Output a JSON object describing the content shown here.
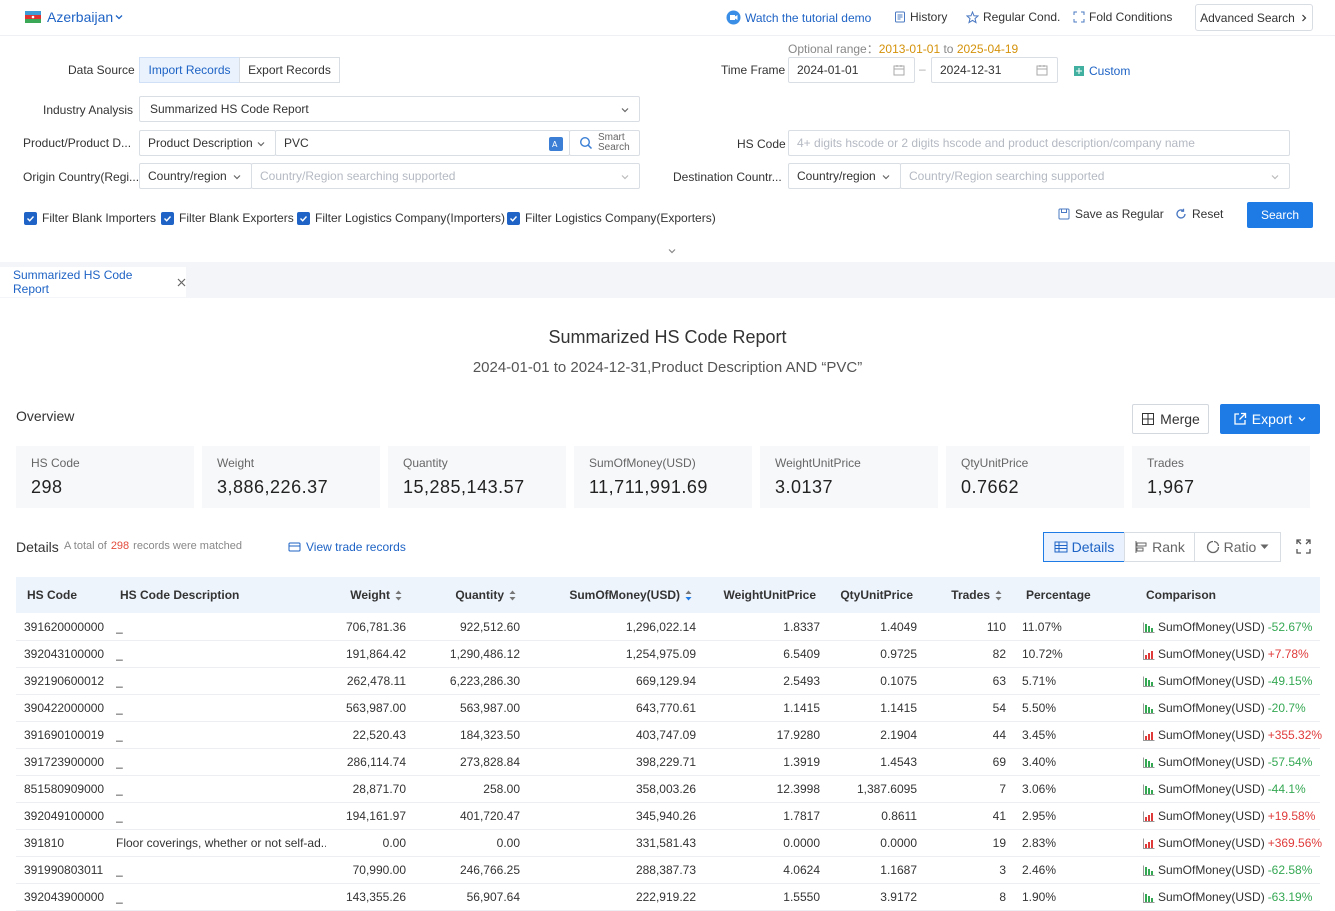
{
  "topbar": {
    "country": "Azerbaijan",
    "links": {
      "tutorial": "Watch the tutorial demo",
      "history": "History",
      "regular": "Regular Cond.",
      "fold": "Fold Conditions",
      "advanced": "Advanced Search"
    }
  },
  "form": {
    "data_source_label": "Data Source",
    "import_label": "Import Records",
    "export_label": "Export Records",
    "optional_range_label": "Optional range：",
    "optional_from": "2013-01-01",
    "optional_to_word": "to",
    "optional_to": "2025-04-19",
    "time_frame_label": "Time Frame",
    "date_from": "2024-01-01",
    "date_sep": "–",
    "date_to": "2024-12-31",
    "custom_label": "Custom",
    "industry_label": "Industry Analysis",
    "industry_value": "Summarized HS Code Report",
    "product_label": "Product/Product D...",
    "product_type": "Product Description",
    "product_value": "PVC",
    "smart_search_1": "Smart",
    "smart_search_2": "Search",
    "hs_label": "HS Code",
    "hs_placeholder": "4+ digits hscode or 2 digits hscode and product description/company name",
    "origin_label": "Origin Country(Regi...",
    "origin_type": "Country/region",
    "origin_placeholder": "Country/Region searching supported",
    "dest_label": "Destination Countr...",
    "dest_type": "Country/region",
    "dest_placeholder": "Country/Region searching supported",
    "filters": [
      "Filter Blank Importers",
      "Filter Blank Exporters",
      "Filter Logistics Company(Importers)",
      "Filter Logistics Company(Exporters)"
    ],
    "save_regular": "Save as Regular",
    "reset": "Reset",
    "search": "Search"
  },
  "tab": {
    "label": "Summarized HS Code Report"
  },
  "report": {
    "title": "Summarized HS Code Report",
    "subtitle": "2024-01-01 to 2024-12-31,Product Description AND “PVC”",
    "overview_label": "Overview",
    "merge": "Merge",
    "export": "Export",
    "cards": [
      {
        "title": "HS Code",
        "value": "298"
      },
      {
        "title": "Weight",
        "value": "3,886,226.37"
      },
      {
        "title": "Quantity",
        "value": "15,285,143.57"
      },
      {
        "title": "SumOfMoney(USD)",
        "value": "11,711,991.69"
      },
      {
        "title": "WeightUnitPrice",
        "value": "3.0137"
      },
      {
        "title": "QtyUnitPrice",
        "value": "0.7662"
      },
      {
        "title": "Trades",
        "value": "1,967"
      }
    ],
    "details_label": "Details",
    "total_prefix": "A total of",
    "total_count": "298",
    "total_suffix": "records were matched",
    "view_trade": "View trade records",
    "view_details": "Details",
    "view_rank": "Rank",
    "view_ratio": "Ratio"
  },
  "table": {
    "headers": [
      "HS Code",
      "HS Code Description",
      "Weight",
      "Quantity",
      "SumOfMoney(USD)",
      "WeightUnitPrice",
      "QtyUnitPrice",
      "Trades",
      "Percentage",
      "Comparison"
    ],
    "rows": [
      {
        "hs": "391620000000",
        "desc": "_",
        "weight": "706,781.36",
        "qty": "922,512.60",
        "money": "1,296,022.14",
        "wup": "1.8337",
        "qup": "1.4049",
        "trades": "110",
        "pct": "11.07%",
        "cmp_label": "SumOfMoney(USD)",
        "cmp_val": "-52.67%",
        "dir": "down"
      },
      {
        "hs": "392043100000",
        "desc": "_",
        "weight": "191,864.42",
        "qty": "1,290,486.12",
        "money": "1,254,975.09",
        "wup": "6.5409",
        "qup": "0.9725",
        "trades": "82",
        "pct": "10.72%",
        "cmp_label": "SumOfMoney(USD)",
        "cmp_val": "+7.78%",
        "dir": "up"
      },
      {
        "hs": "392190600012",
        "desc": "_",
        "weight": "262,478.11",
        "qty": "6,223,286.30",
        "money": "669,129.94",
        "wup": "2.5493",
        "qup": "0.1075",
        "trades": "63",
        "pct": "5.71%",
        "cmp_label": "SumOfMoney(USD)",
        "cmp_val": "-49.15%",
        "dir": "down"
      },
      {
        "hs": "390422000000",
        "desc": "_",
        "weight": "563,987.00",
        "qty": "563,987.00",
        "money": "643,770.61",
        "wup": "1.1415",
        "qup": "1.1415",
        "trades": "54",
        "pct": "5.50%",
        "cmp_label": "SumOfMoney(USD)",
        "cmp_val": "-20.7%",
        "dir": "down"
      },
      {
        "hs": "391690100019",
        "desc": "_",
        "weight": "22,520.43",
        "qty": "184,323.50",
        "money": "403,747.09",
        "wup": "17.9280",
        "qup": "2.1904",
        "trades": "44",
        "pct": "3.45%",
        "cmp_label": "SumOfMoney(USD)",
        "cmp_val": "+355.32%",
        "dir": "up"
      },
      {
        "hs": "391723900000",
        "desc": "_",
        "weight": "286,114.74",
        "qty": "273,828.84",
        "money": "398,229.71",
        "wup": "1.3919",
        "qup": "1.4543",
        "trades": "69",
        "pct": "3.40%",
        "cmp_label": "SumOfMoney(USD)",
        "cmp_val": "-57.54%",
        "dir": "down"
      },
      {
        "hs": "851580909000",
        "desc": "_",
        "weight": "28,871.70",
        "qty": "258.00",
        "money": "358,003.26",
        "wup": "12.3998",
        "qup": "1,387.6095",
        "trades": "7",
        "pct": "3.06%",
        "cmp_label": "SumOfMoney(USD)",
        "cmp_val": "-44.1%",
        "dir": "down"
      },
      {
        "hs": "392049100000",
        "desc": "_",
        "weight": "194,161.97",
        "qty": "401,720.47",
        "money": "345,940.26",
        "wup": "1.7817",
        "qup": "0.8611",
        "trades": "41",
        "pct": "2.95%",
        "cmp_label": "SumOfMoney(USD)",
        "cmp_val": "+19.58%",
        "dir": "up"
      },
      {
        "hs": "391810",
        "desc": "Floor coverings, whether or not self-ad...",
        "weight": "0.00",
        "qty": "0.00",
        "money": "331,581.43",
        "wup": "0.0000",
        "qup": "0.0000",
        "trades": "19",
        "pct": "2.83%",
        "cmp_label": "SumOfMoney(USD)",
        "cmp_val": "+369.56%",
        "dir": "up"
      },
      {
        "hs": "391990803011",
        "desc": "_",
        "weight": "70,990.00",
        "qty": "246,766.25",
        "money": "288,387.73",
        "wup": "4.0624",
        "qup": "1.1687",
        "trades": "3",
        "pct": "2.46%",
        "cmp_label": "SumOfMoney(USD)",
        "cmp_val": "-62.58%",
        "dir": "down"
      },
      {
        "hs": "392043900000",
        "desc": "_",
        "weight": "143,355.26",
        "qty": "56,907.64",
        "money": "222,919.22",
        "wup": "1.5550",
        "qup": "3.9172",
        "trades": "8",
        "pct": "1.90%",
        "cmp_label": "SumOfMoney(USD)",
        "cmp_val": "-63.19%",
        "dir": "down"
      }
    ]
  }
}
